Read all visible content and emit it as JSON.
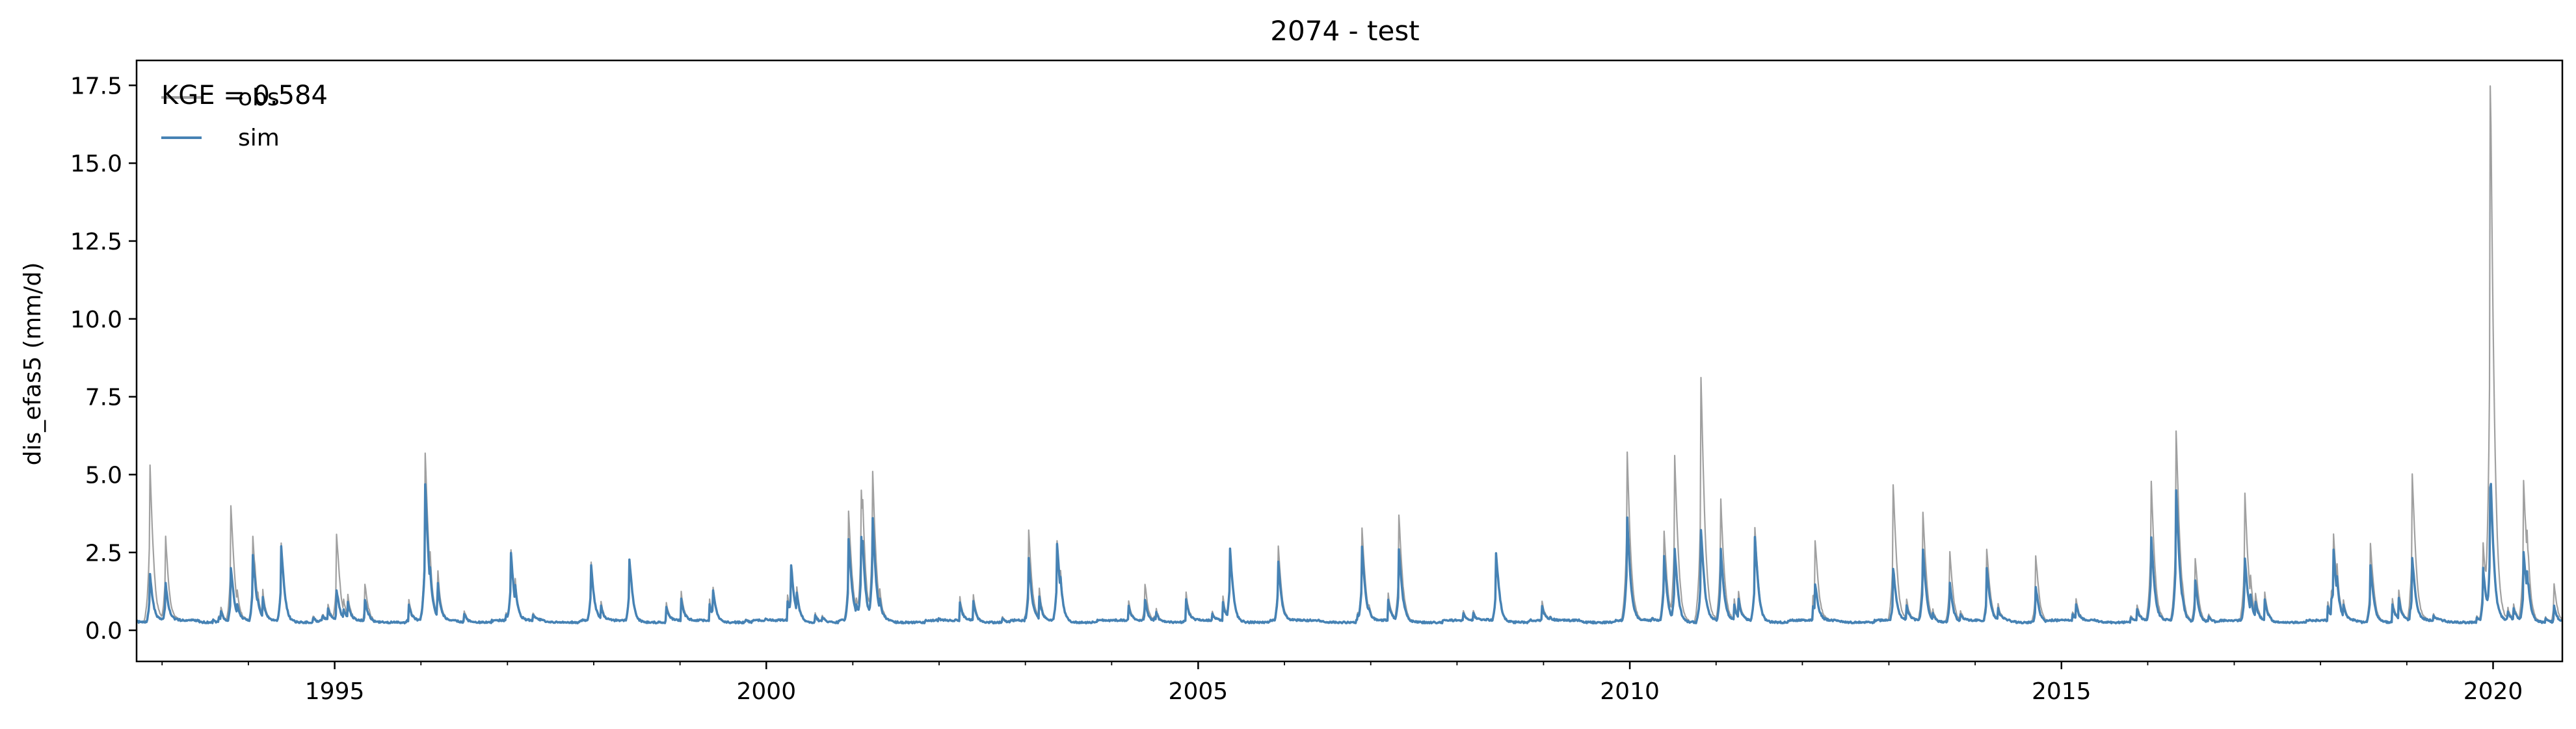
{
  "chart_data": {
    "type": "line",
    "title": "2074 - test",
    "xlabel": "",
    "ylabel": "dis_efas5 (mm/d)",
    "annotation": "KGE = 0.584",
    "xlim": [
      "1992-09-15",
      "2020-10-20"
    ],
    "ylim": [
      -1.0,
      18.3
    ],
    "x_ticks": [
      "1995",
      "2000",
      "2005",
      "2010",
      "2015",
      "2020"
    ],
    "y_ticks": [
      "0.0",
      "2.5",
      "5.0",
      "7.5",
      "10.0",
      "12.5",
      "15.0",
      "17.5"
    ],
    "grid": false,
    "legend_position": "top-left",
    "series": [
      {
        "name": "obs",
        "color": "#a0a0a0",
        "peaks": [
          [
            "1992-11-10",
            5.3
          ],
          [
            "1993-01-15",
            3.0
          ],
          [
            "1993-10-20",
            4.0
          ],
          [
            "1994-01-20",
            3.0
          ],
          [
            "1994-05-20",
            2.8
          ],
          [
            "1995-01-10",
            3.1
          ],
          [
            "1995-05-10",
            1.5
          ],
          [
            "1996-01-20",
            5.7
          ],
          [
            "1997-01-15",
            2.6
          ],
          [
            "1997-12-20",
            2.2
          ],
          [
            "1998-06-01",
            2.3
          ],
          [
            "1999-05-20",
            1.4
          ],
          [
            "2000-04-15",
            2.0
          ],
          [
            "2000-12-15",
            3.8
          ],
          [
            "2001-02-05",
            4.5
          ],
          [
            "2001-03-25",
            5.1
          ],
          [
            "2003-01-15",
            3.2
          ],
          [
            "2003-05-15",
            2.9
          ],
          [
            "2004-05-20",
            1.5
          ],
          [
            "2005-05-15",
            2.6
          ],
          [
            "2005-12-05",
            2.7
          ],
          [
            "2006-11-25",
            3.3
          ],
          [
            "2007-05-01",
            3.7
          ],
          [
            "2008-06-15",
            2.5
          ],
          [
            "2009-12-20",
            5.7
          ],
          [
            "2010-07-10",
            5.6
          ],
          [
            "2010-05-25",
            3.2
          ],
          [
            "2010-10-30",
            8.1
          ],
          [
            "2011-01-20",
            4.2
          ],
          [
            "2011-06-15",
            3.3
          ],
          [
            "2012-02-25",
            2.9
          ],
          [
            "2013-01-20",
            4.7
          ],
          [
            "2013-05-25",
            3.8
          ],
          [
            "2013-09-15",
            2.5
          ],
          [
            "2014-02-20",
            2.6
          ],
          [
            "2014-09-15",
            2.4
          ],
          [
            "2016-01-15",
            4.8
          ],
          [
            "2016-05-01",
            6.4
          ],
          [
            "2016-07-20",
            2.3
          ],
          [
            "2017-02-15",
            4.4
          ],
          [
            "2018-02-25",
            3.1
          ],
          [
            "2018-08-01",
            2.8
          ],
          [
            "2019-01-25",
            5.0
          ],
          [
            "2019-11-20",
            2.8
          ],
          [
            "2019-12-20",
            17.5
          ],
          [
            "2020-05-10",
            4.8
          ],
          [
            "2020-09-15",
            1.5
          ]
        ]
      },
      {
        "name": "sim",
        "color": "#4682b4",
        "peaks": [
          [
            "1992-11-10",
            1.8
          ],
          [
            "1993-01-15",
            1.5
          ],
          [
            "1993-10-20",
            2.0
          ],
          [
            "1994-01-20",
            2.4
          ],
          [
            "1994-05-20",
            2.7
          ],
          [
            "1995-01-10",
            1.3
          ],
          [
            "1995-05-10",
            1.0
          ],
          [
            "1996-01-20",
            4.7
          ],
          [
            "1997-01-15",
            2.5
          ],
          [
            "1997-12-20",
            2.1
          ],
          [
            "1998-06-01",
            2.3
          ],
          [
            "1999-05-20",
            1.3
          ],
          [
            "2000-04-15",
            2.1
          ],
          [
            "2000-12-15",
            2.9
          ],
          [
            "2001-02-05",
            3.0
          ],
          [
            "2001-03-25",
            3.6
          ],
          [
            "2003-01-15",
            2.3
          ],
          [
            "2003-05-15",
            2.8
          ],
          [
            "2004-05-20",
            1.0
          ],
          [
            "2005-05-15",
            2.6
          ],
          [
            "2005-12-05",
            2.2
          ],
          [
            "2006-11-25",
            2.7
          ],
          [
            "2007-05-01",
            2.6
          ],
          [
            "2008-06-15",
            2.5
          ],
          [
            "2009-12-20",
            3.6
          ],
          [
            "2010-07-10",
            2.6
          ],
          [
            "2010-05-25",
            2.4
          ],
          [
            "2010-10-30",
            3.2
          ],
          [
            "2011-01-20",
            2.6
          ],
          [
            "2011-06-15",
            3.0
          ],
          [
            "2012-02-25",
            1.5
          ],
          [
            "2013-01-20",
            2.0
          ],
          [
            "2013-05-25",
            2.6
          ],
          [
            "2013-09-15",
            1.5
          ],
          [
            "2014-02-20",
            2.0
          ],
          [
            "2014-09-15",
            1.4
          ],
          [
            "2016-01-15",
            3.0
          ],
          [
            "2016-05-01",
            4.5
          ],
          [
            "2016-07-20",
            1.6
          ],
          [
            "2017-02-15",
            2.3
          ],
          [
            "2018-02-25",
            2.6
          ],
          [
            "2018-08-01",
            2.1
          ],
          [
            "2019-01-25",
            2.3
          ],
          [
            "2019-11-20",
            2.0
          ],
          [
            "2019-12-20",
            4.6
          ],
          [
            "2020-05-10",
            2.5
          ],
          [
            "2020-09-15",
            0.8
          ]
        ]
      }
    ]
  }
}
